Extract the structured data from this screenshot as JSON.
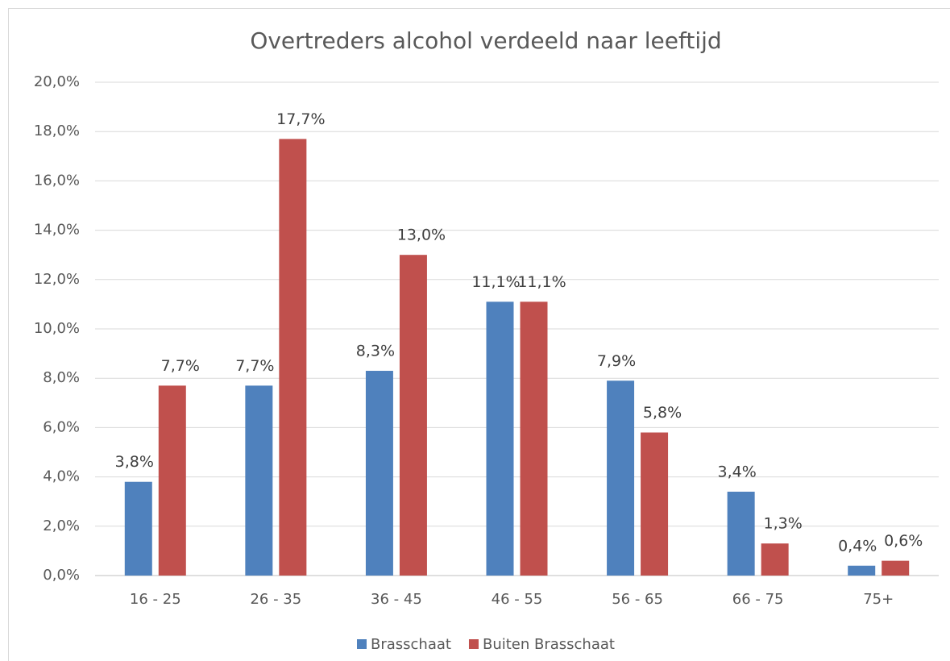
{
  "chart_data": {
    "type": "bar",
    "title": "Overtreders alcohol verdeeld naar leeftijd",
    "categories": [
      "16 - 25",
      "26 - 35",
      "36 - 45",
      "46 - 55",
      "56 - 65",
      "66 - 75",
      "75+"
    ],
    "series": [
      {
        "name": "Brasschaat",
        "color": "#4f81bd",
        "values": [
          3.8,
          7.7,
          8.3,
          11.1,
          7.9,
          3.4,
          0.4
        ],
        "value_labels": [
          "3,8%",
          "7,7%",
          "8,3%",
          "11,1%",
          "7,9%",
          "3,4%",
          "0,4%"
        ]
      },
      {
        "name": "Buiten Brasschaat",
        "color": "#c0504d",
        "values": [
          7.7,
          17.7,
          13.0,
          11.1,
          5.8,
          1.3,
          0.6
        ],
        "value_labels": [
          "7,7%",
          "17,7%",
          "13,0%",
          "11,1%",
          "5,8%",
          "1,3%",
          "0,6%"
        ]
      }
    ],
    "ylim": [
      0,
      20
    ],
    "yticks": [
      {
        "value": 0,
        "label": "0,0%"
      },
      {
        "value": 2,
        "label": "2,0%"
      },
      {
        "value": 4,
        "label": "4,0%"
      },
      {
        "value": 6,
        "label": "6,0%"
      },
      {
        "value": 8,
        "label": "8,0%"
      },
      {
        "value": 10,
        "label": "10,0%"
      },
      {
        "value": 12,
        "label": "12,0%"
      },
      {
        "value": 14,
        "label": "14,0%"
      },
      {
        "value": 16,
        "label": "16,0%"
      },
      {
        "value": 18,
        "label": "18,0%"
      },
      {
        "value": 20,
        "label": "20,0%"
      }
    ],
    "grid": true,
    "legend": "bottom"
  }
}
